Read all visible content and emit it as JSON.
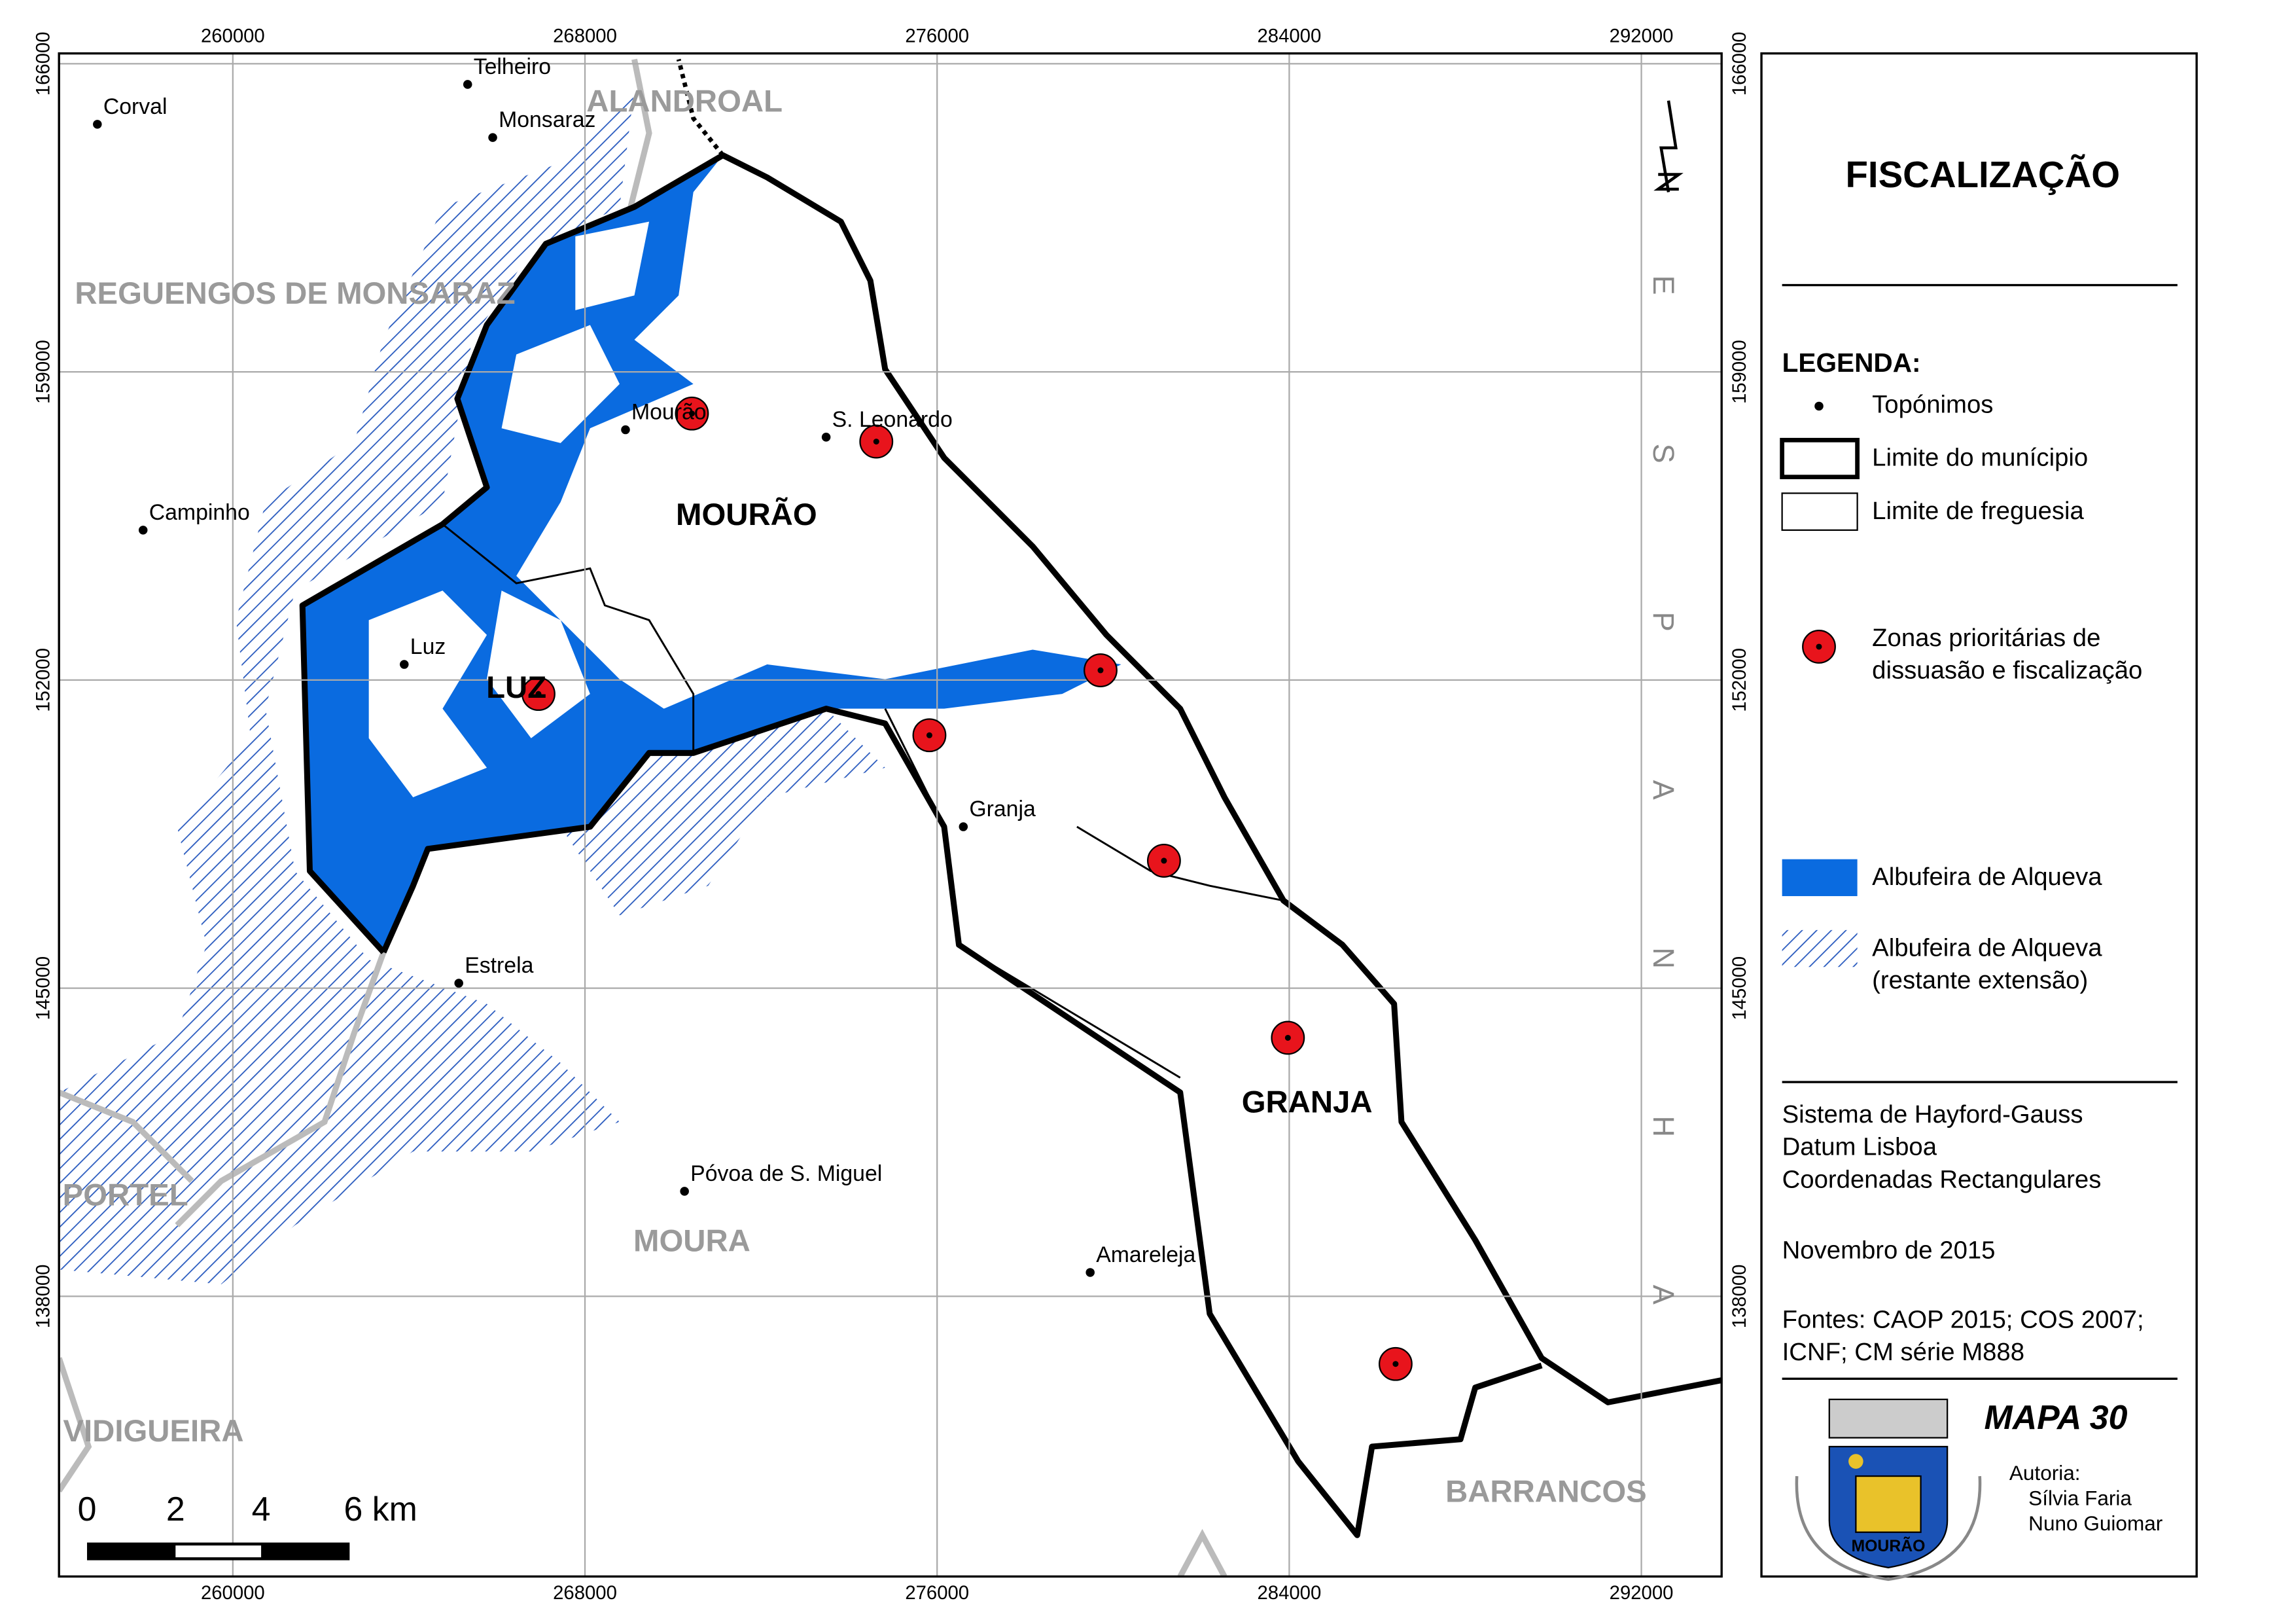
{
  "map": {
    "title": "FISCALIZAÇÃO",
    "xticks": [
      260000,
      268000,
      276000,
      284000,
      292000
    ],
    "yticks": [
      166000,
      159000,
      152000,
      145000,
      138000
    ],
    "xlim": [
      256051,
      293823
    ],
    "ylim": [
      131636,
      166234
    ],
    "grid": true,
    "places": [
      "Corval",
      "Telheiro",
      "Monsaraz",
      "Mourão",
      "S. Leonardo",
      "Campinho",
      "Luz",
      "Granja",
      "Estrela",
      "Póvoa de S. Miguel",
      "Amareleja"
    ],
    "parishes": [
      "MOURÃO",
      "LUZ",
      "GRANJA"
    ],
    "municipalities": [
      "ALANDROAL",
      "REGUENGOS DE MONSARAZ",
      "PORTEL",
      "MOURA",
      "VIDIGUEIRA",
      "BARRANCOS"
    ],
    "country_letters": [
      "E",
      "S",
      "P",
      "A",
      "N",
      "H",
      "A"
    ],
    "scale_bar": [
      "0",
      "2",
      "4",
      "6 km"
    ]
  },
  "legend": {
    "heading": "LEGENDA:",
    "items": [
      [
        "Topónimos"
      ],
      [
        "Limite do munícipio"
      ],
      [
        "Limite de freguesia"
      ],
      [
        "Zonas prioritárias de",
        "dissuasão e fiscalização"
      ],
      [
        "Albufeira de Alqueva"
      ],
      [
        "Albufeira de Alqueva",
        "(restante extensão)"
      ]
    ]
  },
  "info": {
    "projection": [
      "Sistema de Hayford-Gauss",
      "Datum Lisboa",
      "Coordenadas Rectangulares"
    ],
    "date": "Novembro de 2015",
    "sources": [
      "Fontes: CAOP 2015; COS 2007;",
      "ICNF; CM série M888"
    ]
  },
  "footer": {
    "map_number": "MAPA 30",
    "author_label": "Autoria:",
    "authors": [
      "Sílvia Faria",
      "Nuno Guiomar"
    ],
    "crest_text": "MOURÃO"
  }
}
